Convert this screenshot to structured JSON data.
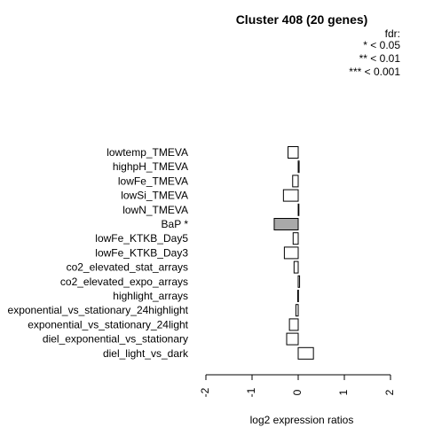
{
  "chart_data": {
    "type": "bar",
    "orientation": "horizontal",
    "title": "Cluster 408 (20 genes)",
    "legend": {
      "title": "fdr:",
      "entries": [
        "* < 0.05",
        "** < 0.01",
        "*** < 0.001"
      ],
      "placement": "top-right"
    },
    "categories": [
      "lowtemp_TMEVA",
      "highpH_TMEVA",
      "lowFe_TMEVA",
      "lowSi_TMEVA",
      "lowN_TMEVA",
      "BaP *",
      "lowFe_KTKB_Day5",
      "lowFe_KTKB_Day3",
      "co2_elevated_stat_arrays",
      "co2_elevated_expo_arrays",
      "highlight_arrays",
      "exponential_vs_stationary_24highlight",
      "exponential_vs_stationary_24light",
      "diel_exponential_vs_stationary",
      "diel_light_vs_dark"
    ],
    "values": [
      -0.22,
      0.02,
      -0.12,
      -0.32,
      0.01,
      -0.52,
      -0.11,
      -0.3,
      -0.09,
      0.03,
      -0.01,
      -0.05,
      -0.19,
      -0.25,
      0.33
    ],
    "highlighted": [
      false,
      false,
      false,
      false,
      false,
      true,
      false,
      false,
      false,
      false,
      false,
      false,
      false,
      false,
      false
    ],
    "bar_color": "#ffffff",
    "highlight_color": "#a9a9a9",
    "xlabel": "log2 expression ratios",
    "xlim": [
      -2,
      2
    ],
    "xticks": [
      -2,
      -1,
      0,
      1,
      2
    ],
    "grid": false
  }
}
